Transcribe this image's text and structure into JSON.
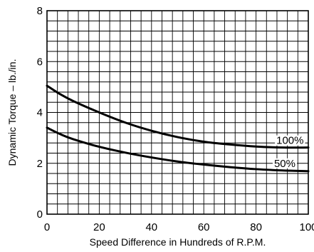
{
  "chart_data": {
    "type": "line",
    "xlabel": "Speed Difference in Hundreds of R.P.M.",
    "ylabel": "Dynamic Torque – lb./in.",
    "xlim": [
      0,
      100
    ],
    "ylim": [
      0,
      8
    ],
    "x_ticks": [
      "0",
      "20",
      "40",
      "60",
      "80",
      "100"
    ],
    "y_ticks": [
      "0",
      "2",
      "4",
      "6",
      "8"
    ],
    "grid": true,
    "grid_step_x": 4,
    "grid_step_y": 0.4,
    "line_color": "#000000",
    "series": [
      {
        "name": "100%",
        "x": [
          0,
          5,
          10,
          20,
          30,
          40,
          50,
          60,
          70,
          80,
          90,
          100
        ],
        "y": [
          5.05,
          4.72,
          4.45,
          4.0,
          3.6,
          3.28,
          3.03,
          2.85,
          2.74,
          2.66,
          2.62,
          2.62
        ]
      },
      {
        "name": "50%",
        "x": [
          0,
          5,
          10,
          20,
          30,
          40,
          50,
          60,
          70,
          80,
          90,
          100
        ],
        "y": [
          3.4,
          3.15,
          2.95,
          2.65,
          2.42,
          2.23,
          2.07,
          1.95,
          1.85,
          1.77,
          1.72,
          1.69
        ]
      }
    ]
  }
}
